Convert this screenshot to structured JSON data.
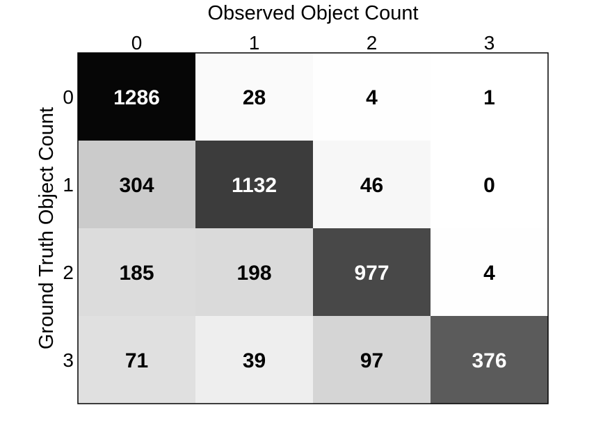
{
  "chart_data": {
    "type": "heatmap",
    "title": "",
    "xlabel": "Observed Object Count",
    "ylabel": "Ground Truth Object Count",
    "x_categories": [
      "0",
      "1",
      "2",
      "3"
    ],
    "y_categories": [
      "0",
      "1",
      "2",
      "3"
    ],
    "values": [
      [
        1286,
        28,
        4,
        1
      ],
      [
        304,
        1132,
        46,
        0
      ],
      [
        185,
        198,
        977,
        4
      ],
      [
        71,
        39,
        97,
        376
      ]
    ],
    "colormap": "grayscale, row-normalized (darker = larger share of row)",
    "colors": {
      "high": "#000000",
      "low": "#ffffff",
      "light_text": "#ffffff",
      "dark_text": "#000000",
      "frame": "#000000"
    },
    "grid": false,
    "legend": "none"
  }
}
